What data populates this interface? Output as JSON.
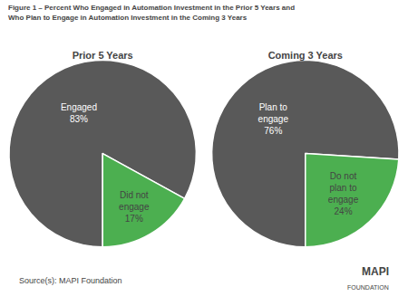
{
  "title": "Figure 1 – Percent Who Engaged in Automation Investment in the Prior 5 Years and\nWho Plan to Engage in Automation Investment in the Coming 3 Years",
  "chart_data": [
    {
      "type": "pie",
      "title": "Prior 5 Years",
      "categories": [
        "Engaged\n83%",
        "Did not\nengage\n17%"
      ],
      "values": [
        83,
        17
      ],
      "colors": [
        "#595959",
        "#4CAF50"
      ]
    },
    {
      "type": "pie",
      "title": "Coming 3 Years",
      "categories": [
        "Plan to\nengage\n76%",
        "Do not\nplan to\nengage\n24%"
      ],
      "values": [
        76,
        24
      ],
      "colors": [
        "#595959",
        "#4CAF50"
      ]
    }
  ],
  "annotations": [
    "Source(s): MAPI Foundation",
    "MAPI",
    "FOUNDATION"
  ]
}
